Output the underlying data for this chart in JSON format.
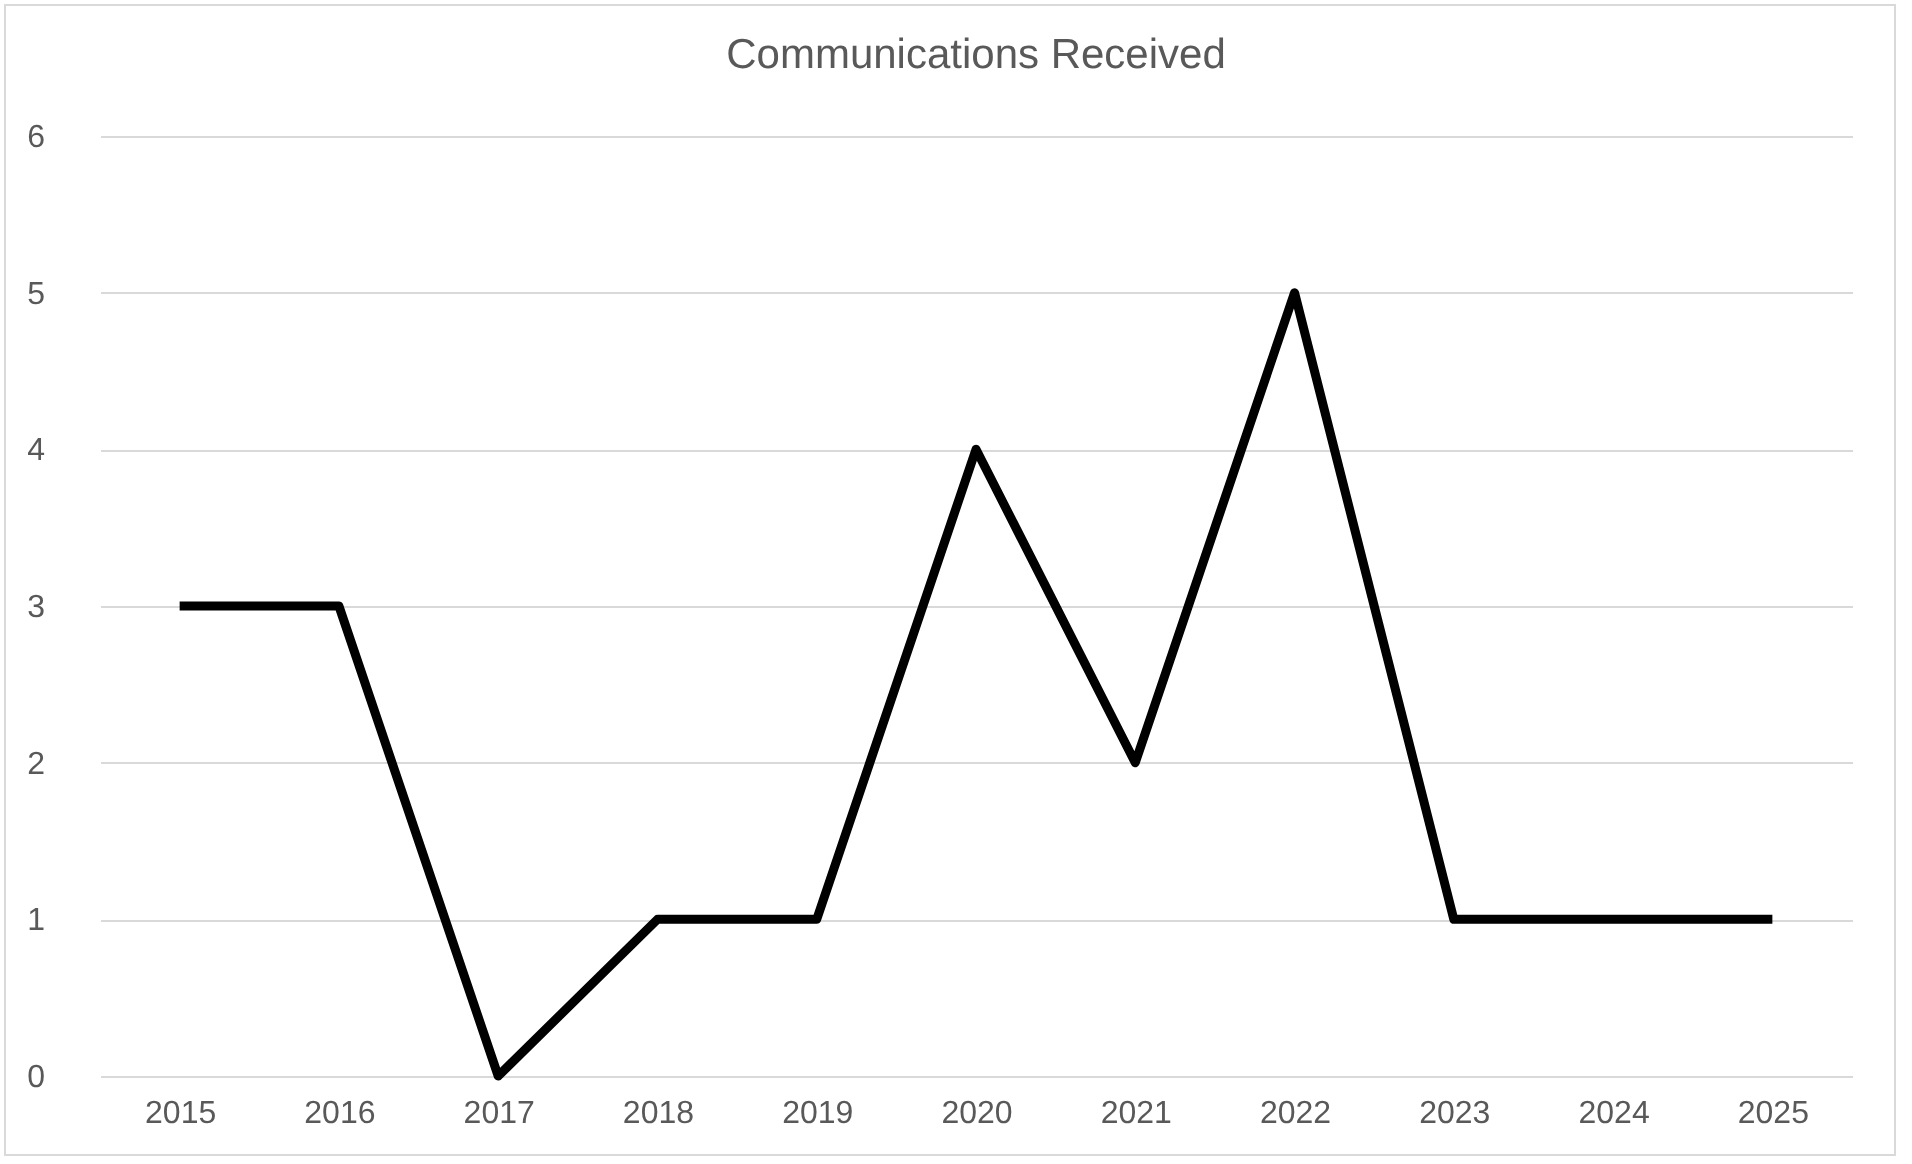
{
  "chart_data": {
    "type": "line",
    "title": "Communications Received",
    "categories": [
      "2015",
      "2016",
      "2017",
      "2018",
      "2019",
      "2020",
      "2021",
      "2022",
      "2023",
      "2024",
      "2025"
    ],
    "series": [
      {
        "color": "#000000",
        "values": [
          3,
          3,
          0,
          1,
          1,
          4,
          2,
          5,
          1,
          1,
          1
        ]
      }
    ],
    "ylim": [
      0,
      6
    ],
    "yticks": [
      0,
      1,
      2,
      3,
      4,
      5,
      6
    ],
    "grid": "y",
    "line_style": "solid"
  }
}
